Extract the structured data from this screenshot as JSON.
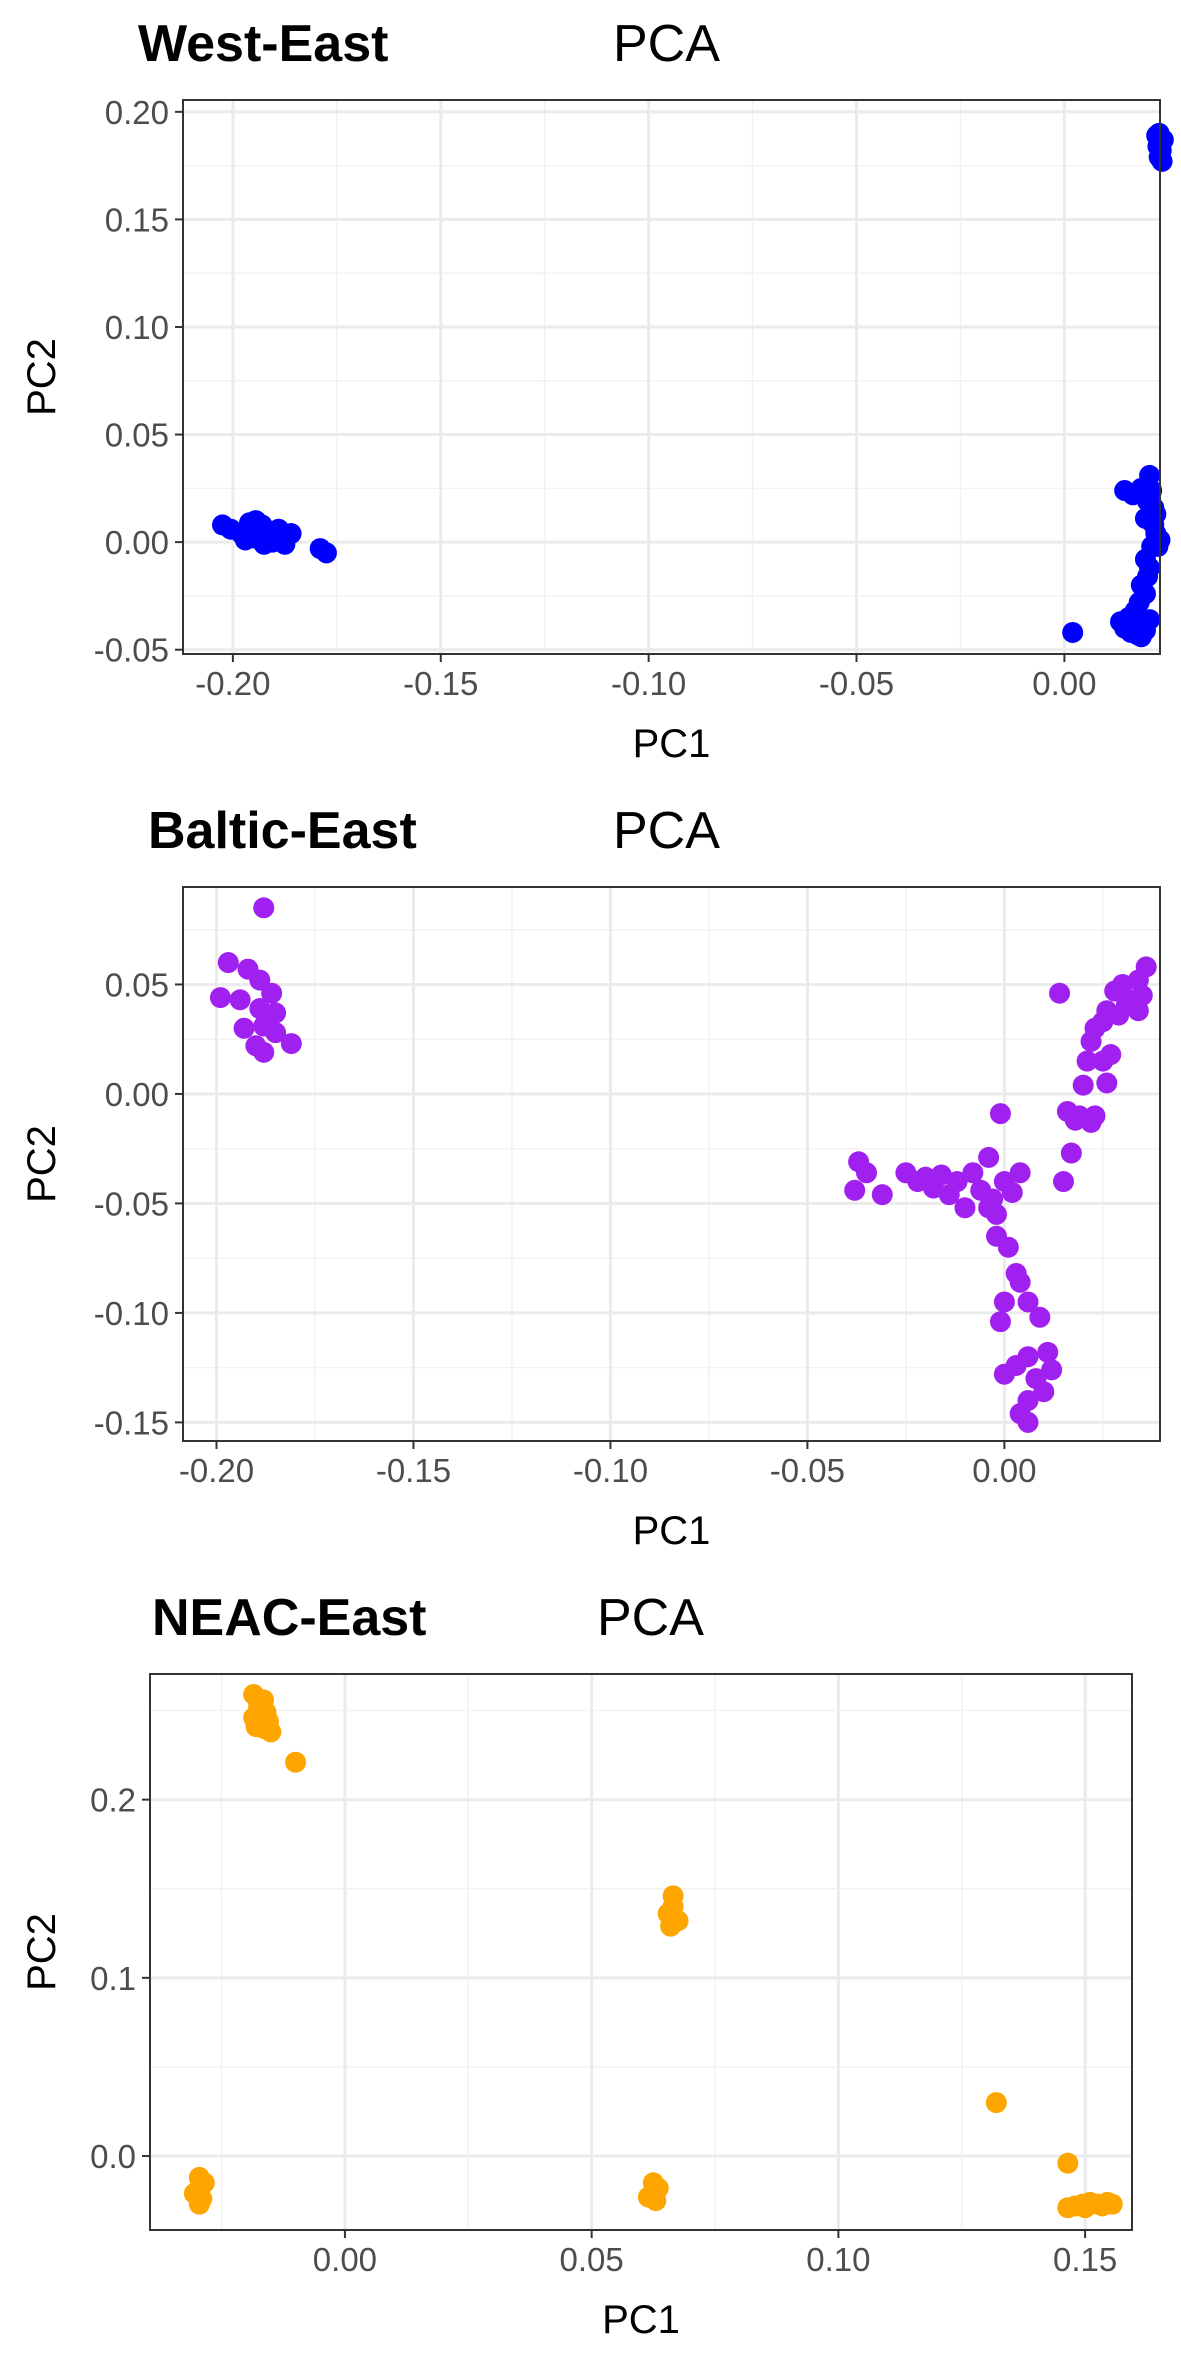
{
  "chart_data": [
    {
      "type": "scatter",
      "title": "West-East",
      "subtitle": "PCA",
      "xlabel": "PC1",
      "ylabel": "PC2",
      "xlim": [
        -0.212,
        0.023
      ],
      "ylim": [
        -0.052,
        0.2055
      ],
      "x_ticks": [
        -0.2,
        -0.15,
        -0.1,
        -0.05,
        0.0
      ],
      "x_tick_labels": [
        "-0.20",
        "-0.15",
        "-0.10",
        "-0.05",
        "0.00"
      ],
      "y_ticks": [
        -0.05,
        0.0,
        0.05,
        0.1,
        0.15,
        0.2
      ],
      "y_tick_labels": [
        "-0.05",
        "0.00",
        "0.05",
        "0.10",
        "0.15",
        "0.20"
      ],
      "grid": true,
      "color": "#0000FF",
      "points": [
        [
          0.0228,
          0.19
        ],
        [
          0.0232,
          0.187
        ],
        [
          0.0225,
          0.184
        ],
        [
          0.0233,
          0.182
        ],
        [
          0.0228,
          0.179
        ],
        [
          0.0235,
          0.177
        ],
        [
          0.0238,
          0.187
        ],
        [
          0.0222,
          0.189
        ],
        [
          -0.2025,
          0.008
        ],
        [
          -0.2005,
          0.006
        ],
        [
          -0.198,
          0.004
        ],
        [
          -0.196,
          0.009
        ],
        [
          -0.1945,
          0.01
        ],
        [
          -0.193,
          0.008
        ],
        [
          -0.195,
          0.002
        ],
        [
          -0.197,
          0.001
        ],
        [
          -0.1915,
          0.004
        ],
        [
          -0.1905,
          0.0
        ],
        [
          -0.189,
          0.006
        ],
        [
          -0.1875,
          -0.001
        ],
        [
          -0.186,
          0.004
        ],
        [
          -0.1925,
          -0.001
        ],
        [
          -0.179,
          -0.003
        ],
        [
          -0.1775,
          -0.005
        ],
        [
          0.002,
          -0.042
        ],
        [
          0.0145,
          0.024
        ],
        [
          0.0165,
          0.022
        ],
        [
          0.0185,
          0.025
        ],
        [
          0.0205,
          0.031
        ],
        [
          0.021,
          0.024
        ],
        [
          0.02,
          0.019
        ],
        [
          0.0215,
          0.016
        ],
        [
          0.022,
          0.013
        ],
        [
          0.0195,
          0.011
        ],
        [
          0.0215,
          0.008
        ],
        [
          0.022,
          0.004
        ],
        [
          0.023,
          0.001
        ],
        [
          0.021,
          -0.002
        ],
        [
          0.0225,
          -0.002
        ],
        [
          0.0195,
          -0.008
        ],
        [
          0.0205,
          -0.012
        ],
        [
          0.02,
          -0.016
        ],
        [
          0.0185,
          -0.02
        ],
        [
          0.0195,
          -0.024
        ],
        [
          0.018,
          -0.028
        ],
        [
          0.017,
          -0.032
        ],
        [
          0.0155,
          -0.035
        ],
        [
          0.0135,
          -0.037
        ],
        [
          0.0145,
          -0.04
        ],
        [
          0.0165,
          -0.039
        ],
        [
          0.018,
          -0.038
        ],
        [
          0.0195,
          -0.041
        ],
        [
          0.0175,
          -0.043
        ],
        [
          0.016,
          -0.042
        ],
        [
          0.0205,
          -0.036
        ],
        [
          0.0185,
          -0.044
        ]
      ]
    },
    {
      "type": "scatter",
      "title": "Baltic-East",
      "subtitle": "PCA",
      "xlabel": "PC1",
      "ylabel": "PC2",
      "xlim": [
        -0.2085,
        0.0395
      ],
      "ylim": [
        -0.1585,
        0.0945
      ],
      "x_ticks": [
        -0.2,
        -0.15,
        -0.1,
        -0.05,
        0.0
      ],
      "x_tick_labels": [
        "-0.20",
        "-0.15",
        "-0.10",
        "-0.05",
        "0.00"
      ],
      "y_ticks": [
        -0.15,
        -0.1,
        -0.05,
        0.0,
        0.05
      ],
      "y_tick_labels": [
        "-0.15",
        "-0.10",
        "-0.05",
        "0.00",
        "0.05"
      ],
      "grid": true,
      "color": "#A020F0",
      "points": [
        [
          -0.188,
          0.085
        ],
        [
          -0.197,
          0.06
        ],
        [
          -0.192,
          0.057
        ],
        [
          -0.189,
          0.052
        ],
        [
          -0.186,
          0.046
        ],
        [
          -0.194,
          0.043
        ],
        [
          -0.189,
          0.039
        ],
        [
          -0.185,
          0.037
        ],
        [
          -0.188,
          0.031
        ],
        [
          -0.19,
          0.022
        ],
        [
          -0.181,
          0.023
        ],
        [
          -0.188,
          0.019
        ],
        [
          -0.199,
          0.044
        ],
        [
          -0.193,
          0.03
        ],
        [
          -0.185,
          0.028
        ],
        [
          0.014,
          0.046
        ],
        [
          0.036,
          0.058
        ],
        [
          0.034,
          0.052
        ],
        [
          0.03,
          0.05
        ],
        [
          0.028,
          0.047
        ],
        [
          0.033,
          0.043
        ],
        [
          0.031,
          0.041
        ],
        [
          0.026,
          0.038
        ],
        [
          0.023,
          0.03
        ],
        [
          0.025,
          0.033
        ],
        [
          0.029,
          0.036
        ],
        [
          0.034,
          0.038
        ],
        [
          0.035,
          0.045
        ],
        [
          0.022,
          0.024
        ],
        [
          0.027,
          0.018
        ],
        [
          0.025,
          0.015
        ],
        [
          0.021,
          0.015
        ],
        [
          0.02,
          0.004
        ],
        [
          0.019,
          -0.01
        ],
        [
          0.023,
          -0.01
        ],
        [
          0.022,
          -0.013
        ],
        [
          0.018,
          -0.012
        ],
        [
          0.016,
          -0.008
        ],
        [
          0.026,
          0.005
        ],
        [
          0.017,
          -0.027
        ],
        [
          0.015,
          -0.04
        ],
        [
          -0.038,
          -0.044
        ],
        [
          -0.037,
          -0.031
        ],
        [
          -0.035,
          -0.036
        ],
        [
          -0.031,
          -0.046
        ],
        [
          -0.025,
          -0.036
        ],
        [
          -0.022,
          -0.04
        ],
        [
          -0.02,
          -0.038
        ],
        [
          -0.018,
          -0.043
        ],
        [
          -0.016,
          -0.037
        ],
        [
          -0.014,
          -0.046
        ],
        [
          -0.012,
          -0.04
        ],
        [
          -0.01,
          -0.052
        ],
        [
          -0.008,
          -0.036
        ],
        [
          -0.006,
          -0.044
        ],
        [
          -0.004,
          -0.029
        ],
        [
          -0.003,
          -0.048
        ],
        [
          -0.002,
          -0.055
        ],
        [
          0.0,
          -0.04
        ],
        [
          0.002,
          -0.045
        ],
        [
          0.004,
          -0.036
        ],
        [
          -0.004,
          -0.052
        ],
        [
          -0.001,
          -0.009
        ],
        [
          -0.002,
          -0.065
        ],
        [
          0.001,
          -0.07
        ],
        [
          0.003,
          -0.082
        ],
        [
          0.004,
          -0.086
        ],
        [
          0.0,
          -0.095
        ],
        [
          0.006,
          -0.095
        ],
        [
          -0.001,
          -0.104
        ],
        [
          0.009,
          -0.102
        ],
        [
          0.011,
          -0.118
        ],
        [
          0.006,
          -0.12
        ],
        [
          0.003,
          -0.124
        ],
        [
          0.0,
          -0.128
        ],
        [
          0.008,
          -0.13
        ],
        [
          0.012,
          -0.126
        ],
        [
          0.01,
          -0.136
        ],
        [
          0.006,
          -0.14
        ],
        [
          0.004,
          -0.146
        ],
        [
          0.006,
          -0.15
        ]
      ]
    },
    {
      "type": "scatter",
      "title": "NEAC-East",
      "subtitle": "PCA",
      "xlabel": "PC1",
      "ylabel": "PC2",
      "xlim": [
        -0.0395,
        0.1595
      ],
      "ylim": [
        -0.0415,
        0.2705
      ],
      "x_ticks": [
        0.0,
        0.05,
        0.1,
        0.15
      ],
      "x_tick_labels": [
        "0.00",
        "0.05",
        "0.10",
        "0.15"
      ],
      "y_ticks": [
        0.0,
        0.1,
        0.2
      ],
      "y_tick_labels": [
        "0.0",
        "0.1",
        "0.2"
      ],
      "grid": true,
      "color": "#FFA500",
      "points": [
        [
          -0.0185,
          0.259
        ],
        [
          -0.0165,
          0.256
        ],
        [
          -0.0175,
          0.252
        ],
        [
          -0.016,
          0.249
        ],
        [
          -0.0185,
          0.246
        ],
        [
          -0.0155,
          0.244
        ],
        [
          -0.018,
          0.241
        ],
        [
          -0.015,
          0.238
        ],
        [
          -0.0165,
          0.24
        ],
        [
          -0.017,
          0.245
        ],
        [
          -0.01,
          0.221
        ],
        [
          0.0665,
          0.146
        ],
        [
          0.0665,
          0.14
        ],
        [
          0.0655,
          0.136
        ],
        [
          0.0675,
          0.132
        ],
        [
          0.066,
          0.129
        ],
        [
          0.132,
          0.03
        ],
        [
          0.1465,
          -0.004
        ],
        [
          -0.0295,
          -0.012
        ],
        [
          -0.0285,
          -0.015
        ],
        [
          -0.0295,
          -0.018
        ],
        [
          -0.0305,
          -0.021
        ],
        [
          -0.029,
          -0.024
        ],
        [
          -0.0295,
          -0.027
        ],
        [
          0.0625,
          -0.015
        ],
        [
          0.0635,
          -0.018
        ],
        [
          0.0625,
          -0.021
        ],
        [
          0.0615,
          -0.023
        ],
        [
          0.063,
          -0.025
        ],
        [
          0.1465,
          -0.029
        ],
        [
          0.148,
          -0.028
        ],
        [
          0.1495,
          -0.027
        ],
        [
          0.151,
          -0.026
        ],
        [
          0.1525,
          -0.027
        ],
        [
          0.1545,
          -0.026
        ],
        [
          0.1535,
          -0.028
        ],
        [
          0.1555,
          -0.027
        ],
        [
          0.15,
          -0.029
        ]
      ]
    }
  ]
}
